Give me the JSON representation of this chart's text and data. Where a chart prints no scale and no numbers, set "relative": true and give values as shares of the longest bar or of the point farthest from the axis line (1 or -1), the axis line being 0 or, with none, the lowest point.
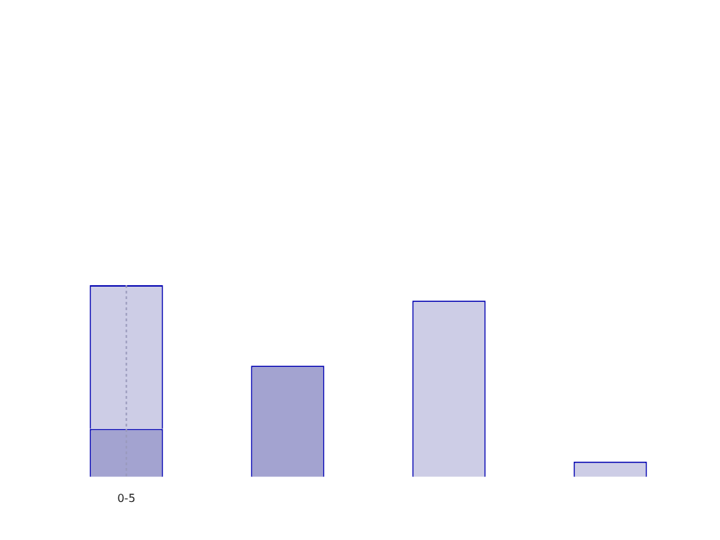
{
  "chart_data": {
    "type": "bar",
    "relative": true,
    "categories": [
      "0-5",
      null,
      null,
      null
    ],
    "series": [
      {
        "color": "#a3a3d0",
        "values": [
          0.25,
          0.58,
          null,
          null
        ]
      },
      {
        "color": "#cdcde6",
        "values": [
          0.75,
          null,
          0.92,
          0.08
        ]
      }
    ],
    "stacked": true,
    "ref_lines": [
      {
        "axis": "x",
        "value": "0-5",
        "line_style": "dotted",
        "color": "#9999bb"
      }
    ]
  }
}
